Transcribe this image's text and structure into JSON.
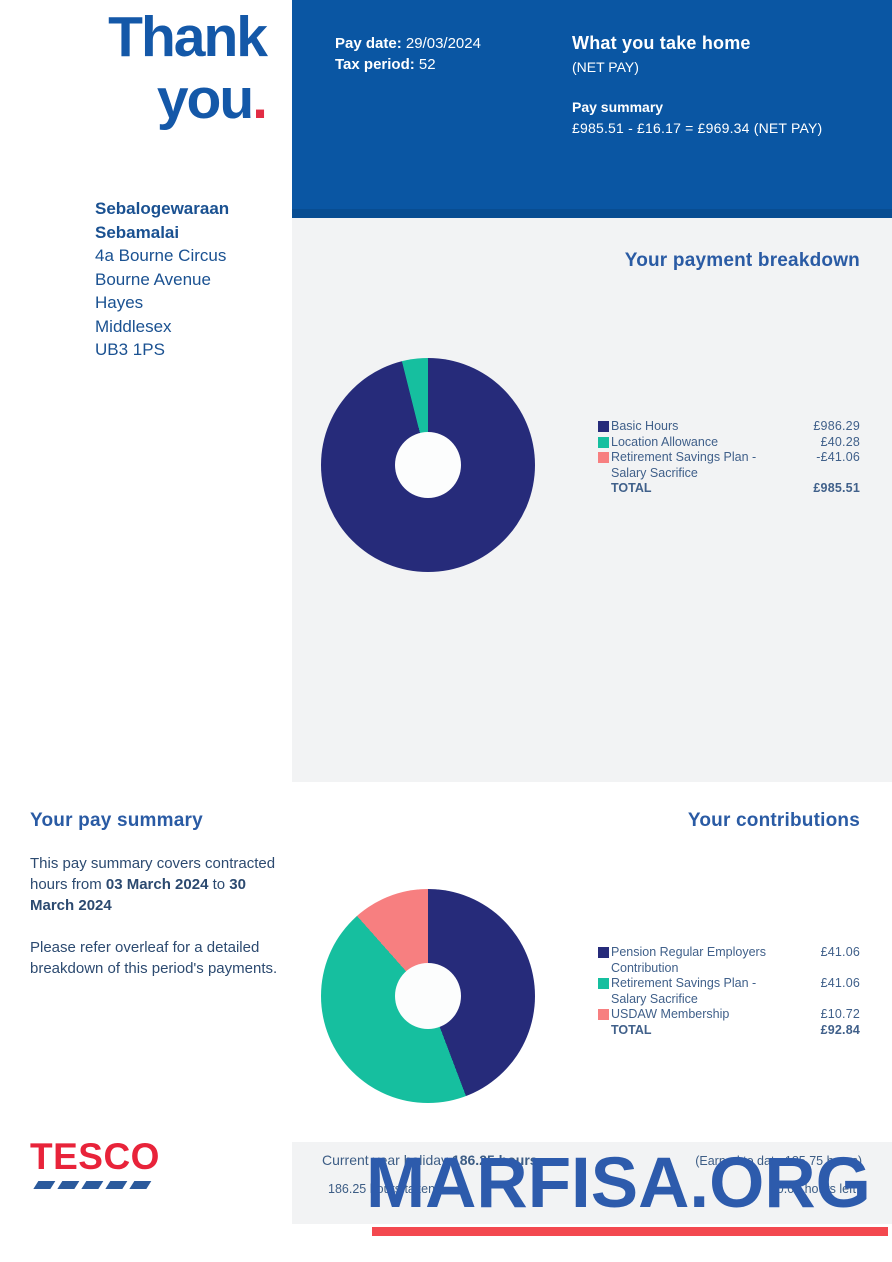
{
  "brand": {
    "thank_line1": "Thank",
    "thank_line2": "you",
    "thank_dot": ".",
    "logo_text": "TESCO"
  },
  "header": {
    "pay_date_label": "Pay date:",
    "pay_date_value": "29/03/2024",
    "tax_period_label": "Tax period:",
    "tax_period_value": "52",
    "take_home_title": "What you take home",
    "net_pay_note": "(NET PAY)",
    "pay_summary_label": "Pay summary",
    "pay_summary_equation": "£985.51 - £16.17 = £969.34 (NET PAY)"
  },
  "recipient": {
    "name_line1": "Sebalogewaraan",
    "name_line2": "Sebamalai",
    "address": [
      "4a Bourne Circus",
      "Bourne Avenue",
      "Hayes",
      "Middlesex",
      "UB3 1PS"
    ]
  },
  "payment_breakdown": {
    "title": "Your payment breakdown",
    "rows": [
      {
        "label": "Basic Hours",
        "label2": "",
        "value": "£986.29",
        "color": "#262b7a"
      },
      {
        "label": "Location Allowance",
        "label2": "",
        "value": "£40.28",
        "color": "#16bf9f"
      },
      {
        "label": "Retirement Savings Plan -",
        "label2": "Salary Sacrifice",
        "value": "-£41.06",
        "color": "#f77f80"
      }
    ],
    "total_label": "TOTAL",
    "total_value": "£985.51"
  },
  "pay_summary": {
    "title": "Your pay summary",
    "p1_parts": [
      "This pay summary covers contracted hours from ",
      "03 March 2024",
      " to ",
      "30 March 2024"
    ],
    "p2": "Please refer overleaf for a detailed breakdown of this period's payments."
  },
  "contributions": {
    "title": "Your contributions",
    "rows": [
      {
        "label": "Pension Regular Employers",
        "label2": "Contribution",
        "value": "£41.06",
        "color": "#262b7a"
      },
      {
        "label": "Retirement Savings Plan -",
        "label2": "Salary Sacrifice",
        "value": "£41.06",
        "color": "#16bf9f"
      },
      {
        "label": "USDAW Membership",
        "label2": "",
        "value": "£10.72",
        "color": "#f77f80"
      }
    ],
    "total_label": "TOTAL",
    "total_value": "£92.84"
  },
  "holiday": {
    "row1_left_prefix": "Current year holiday ",
    "row1_left_bold": "186.25 hours",
    "row1_right": "(Earned to date 185.75 hours)",
    "row2_left": "186.25 hours taken",
    "row2_right": "0.00 hours left"
  },
  "watermark": {
    "text": "MARFISA.ORG"
  },
  "chart_data": [
    {
      "type": "pie",
      "variant": "donut",
      "title": "Your payment breakdown",
      "segments": [
        {
          "label": "Basic Hours",
          "value": 986.29,
          "color": "#262b7a"
        },
        {
          "label": "Location Allowance",
          "value": 40.28,
          "color": "#16bf9f"
        }
      ],
      "legend_values": {
        "Basic Hours": 986.29,
        "Location Allowance": 40.28,
        "Retirement Savings Plan - Salary Sacrifice": -41.06
      },
      "total": 985.51,
      "legend_position": "right"
    },
    {
      "type": "pie",
      "variant": "donut",
      "title": "Your contributions",
      "segments": [
        {
          "label": "Pension Regular Employers Contribution",
          "value": 41.06,
          "color": "#262b7a"
        },
        {
          "label": "Retirement Savings Plan - Salary Sacrifice",
          "value": 41.06,
          "color": "#16bf9f"
        },
        {
          "label": "USDAW Membership",
          "value": 10.72,
          "color": "#f77f80"
        }
      ],
      "total": 92.84,
      "legend_position": "right"
    }
  ]
}
